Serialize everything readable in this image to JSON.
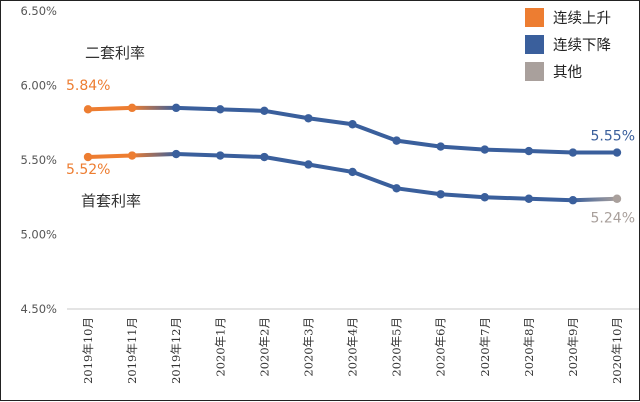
{
  "chart_data": {
    "type": "line",
    "title": "",
    "xlabel": "",
    "ylabel": "",
    "ylim": [
      4.5,
      6.5
    ],
    "y_ticks": [
      "6.50%",
      "6.00%",
      "5.50%",
      "5.00%",
      "4.50%"
    ],
    "y_tick_values": [
      6.5,
      6.0,
      5.5,
      5.0,
      4.5
    ],
    "categories": [
      "2019年10月",
      "2019年11月",
      "2019年12月",
      "2020年1月",
      "2020年2月",
      "2020年3月",
      "2020年4月",
      "2020年5月",
      "2020年6月",
      "2020年7月",
      "2020年8月",
      "2020年9月",
      "2020年10月"
    ],
    "series": [
      {
        "name": "二套利率",
        "values": [
          5.84,
          5.85,
          5.85,
          5.84,
          5.83,
          5.78,
          5.74,
          5.63,
          5.59,
          5.57,
          5.56,
          5.55,
          5.55
        ],
        "states": [
          "up",
          "up",
          "down",
          "down",
          "down",
          "down",
          "down",
          "down",
          "down",
          "down",
          "down",
          "down",
          "down"
        ],
        "first_label": "5.84%",
        "last_label": "5.55%"
      },
      {
        "name": "首套利率",
        "values": [
          5.52,
          5.53,
          5.54,
          5.53,
          5.52,
          5.47,
          5.42,
          5.31,
          5.27,
          5.25,
          5.24,
          5.23,
          5.24
        ],
        "states": [
          "up",
          "up",
          "down",
          "down",
          "down",
          "down",
          "down",
          "down",
          "down",
          "down",
          "down",
          "down",
          "other"
        ],
        "first_label": "5.52%",
        "last_label": "5.24%"
      }
    ],
    "legend": [
      {
        "key": "up",
        "label": "连续上升",
        "color": "#ED7D31"
      },
      {
        "key": "down",
        "label": "连续下降",
        "color": "#3A5F9C"
      },
      {
        "key": "other",
        "label": "其他",
        "color": "#A9A09C"
      }
    ],
    "legend_position": "top-right"
  }
}
